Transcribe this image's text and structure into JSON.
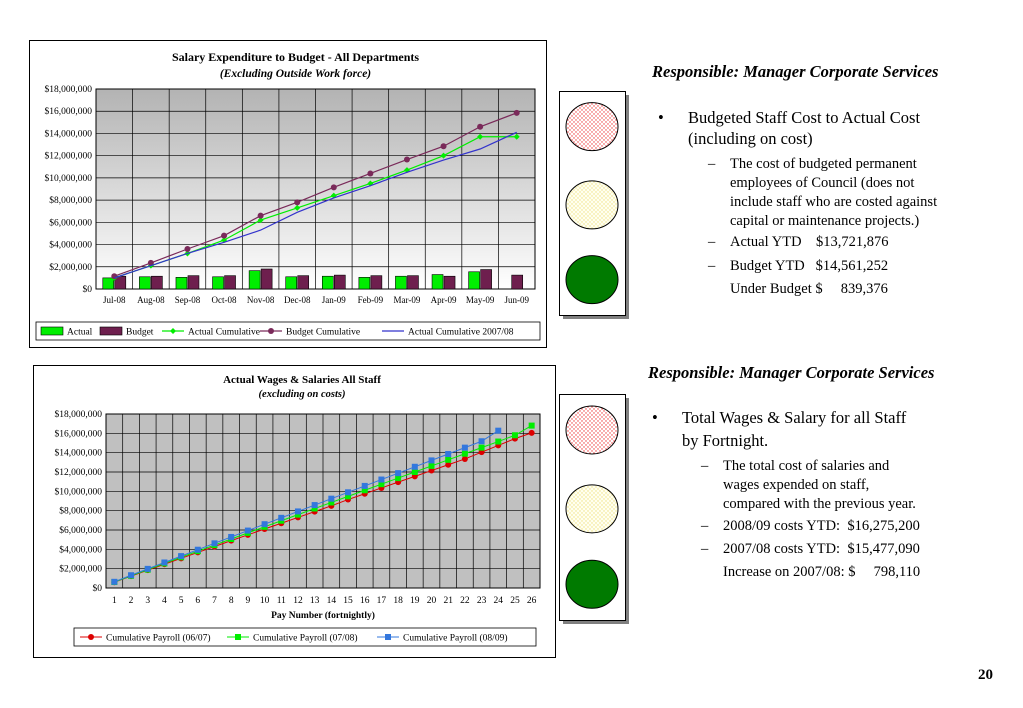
{
  "chart_data": [
    {
      "type": "bar+line",
      "title": "Salary Expenditure to Budget - All Departments",
      "subtitle": "(Excluding Outside Work force)",
      "categories": [
        "Jul-08",
        "Aug-08",
        "Sep-08",
        "Oct-08",
        "Nov-08",
        "Dec-08",
        "Jan-09",
        "Feb-09",
        "Mar-09",
        "Apr-09",
        "May-09",
        "Jun-09"
      ],
      "ylim": [
        0,
        18000000
      ],
      "ytick_labels": [
        "$0",
        "$2,000,000",
        "$4,000,000",
        "$6,000,000",
        "$8,000,000",
        "$10,000,000",
        "$12,000,000",
        "$14,000,000",
        "$16,000,000",
        "$18,000,000"
      ],
      "grid": true,
      "legend_position": "bottom",
      "series": [
        {
          "name": "Actual",
          "kind": "bar",
          "color": "#00ee00",
          "values": [
            1000000,
            1100000,
            1050000,
            1100000,
            1650000,
            1100000,
            1150000,
            1050000,
            1150000,
            1300000,
            1550000,
            null
          ]
        },
        {
          "name": "Budget",
          "kind": "bar",
          "color": "#6e1f4e",
          "values": [
            1150000,
            1150000,
            1200000,
            1200000,
            1800000,
            1200000,
            1250000,
            1200000,
            1200000,
            1150000,
            1750000,
            1250000
          ]
        },
        {
          "name": "Actual Cumulative",
          "kind": "line",
          "color": "#00ee00",
          "marker": "diamond",
          "values": [
            1000000,
            2100000,
            3200000,
            4400000,
            6200000,
            7300000,
            8400000,
            9500000,
            10700000,
            12000000,
            13700000,
            13700000
          ]
        },
        {
          "name": "Budget Cumulative",
          "kind": "line",
          "color": "#7a2a5a",
          "marker": "circle",
          "values": [
            1150000,
            2350000,
            3600000,
            4800000,
            6600000,
            7800000,
            9150000,
            10400000,
            11650000,
            12850000,
            14600000,
            15850000
          ]
        },
        {
          "name": "Actual  Cumulative  2007/08",
          "kind": "line",
          "color": "#3333cc",
          "marker": "none",
          "values": [
            1000000,
            2100000,
            3200000,
            4200000,
            5300000,
            6900000,
            8200000,
            9300000,
            10500000,
            11600000,
            12600000,
            14100000
          ]
        }
      ]
    },
    {
      "type": "line",
      "title": "Actual  Wages  &  Salaries  All  Staff",
      "subtitle": "(excluding  on costs)",
      "xlabel": "Pay Number (fortnightly)",
      "x": [
        1,
        2,
        3,
        4,
        5,
        6,
        7,
        8,
        9,
        10,
        11,
        12,
        13,
        14,
        15,
        16,
        17,
        18,
        19,
        20,
        21,
        22,
        23,
        24,
        25,
        26
      ],
      "ylim": [
        0,
        18000000
      ],
      "ytick_labels": [
        "$0",
        "$2,000,000",
        "$4,000,000",
        "$6,000,000",
        "$8,000,000",
        "$10,000,000",
        "$12,000,000",
        "$14,000,000",
        "$16,000,000",
        "$18,000,000"
      ],
      "grid": true,
      "legend_position": "bottom",
      "series": [
        {
          "name": "Cumulative Payroll (06/07)",
          "color": "#dd0000",
          "marker": "circle",
          "values": [
            600000,
            1230000,
            1850000,
            2460000,
            3070000,
            3680000,
            4290000,
            4900000,
            5500000,
            6100000,
            6700000,
            7300000,
            7900000,
            8500000,
            9150000,
            9750000,
            10350000,
            10950000,
            11550000,
            12150000,
            12750000,
            13350000,
            14050000,
            14750000,
            15450000,
            16050000
          ]
        },
        {
          "name": "Cumulative Payroll (07/08)",
          "color": "#00ee00",
          "marker": "square",
          "values": [
            620000,
            1260000,
            1900000,
            2540000,
            3180000,
            3810000,
            4440000,
            5070000,
            5700000,
            6330000,
            6960000,
            7590000,
            8220000,
            8850000,
            9480000,
            10110000,
            10740000,
            11370000,
            12000000,
            12630000,
            13260000,
            13890000,
            14520000,
            15150000,
            15800000,
            16800000
          ]
        },
        {
          "name": "Cumulative Payroll (08/09)",
          "color": "#3377dd",
          "marker": "square",
          "values": [
            640000,
            1320000,
            1980000,
            2640000,
            3300000,
            3960000,
            4620000,
            5280000,
            5940000,
            6600000,
            7260000,
            7920000,
            8580000,
            9240000,
            9900000,
            10560000,
            11220000,
            11880000,
            12540000,
            13200000,
            13860000,
            14520000,
            15180000,
            16275200,
            null,
            null
          ]
        }
      ]
    }
  ],
  "traffic_lights": [
    {
      "active": "green",
      "red_color": "#ee3333",
      "yellow_color": "#f0e080",
      "green_color": "#007a00"
    },
    {
      "active": "green",
      "red_color": "#ee3333",
      "yellow_color": "#f0e080",
      "green_color": "#007a00"
    }
  ],
  "section1": {
    "heading": "Responsible: Manager Corporate Services",
    "bullet_lines": [
      "Budgeted Staff Cost to Actual Cost",
      "(including on cost)"
    ],
    "sub1_lines": [
      "The cost of budgeted permanent",
      "employees of Council (does not",
      "include staff who are costed against",
      "capital or maintenance projects.)"
    ],
    "sub2": "Actual YTD    $13,721,876",
    "sub3": "Budget YTD   $14,561,252",
    "note": "Under Budget $     839,376"
  },
  "section2": {
    "heading": "Responsible: Manager Corporate Services",
    "bullet_lines": [
      "Total Wages & Salary for all Staff",
      "by Fortnight."
    ],
    "sub1_lines": [
      "The total cost of salaries and",
      "wages expended on staff,",
      "compared with the previous year."
    ],
    "sub2": "2008/09 costs YTD:  $16,275,200",
    "sub3": "2007/08 costs YTD:  $15,477,090",
    "note": "Increase on 2007/08: $     798,110"
  },
  "bullet_symbol": "•",
  "dash_symbol": "–",
  "page_number": "20"
}
